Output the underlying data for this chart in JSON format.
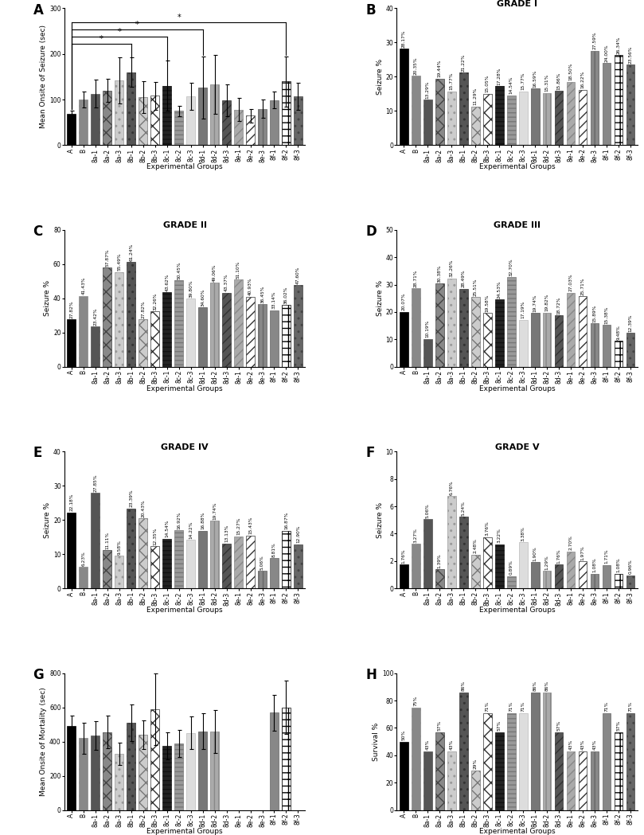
{
  "groups": [
    "A",
    "B",
    "8a-1",
    "8a-2",
    "8a-3",
    "8b-1",
    "8b-2",
    "8b-3",
    "8c-1",
    "8c-2",
    "8c-3",
    "8d-1",
    "8d-2",
    "8d-3",
    "8e-1",
    "8e-2",
    "8e-3",
    "8f-1",
    "8f-2",
    "8f-3"
  ],
  "bar_styles": [
    {
      "color": "#000000",
      "hatch": null,
      "edgecolor": "#000000"
    },
    {
      "color": "#888888",
      "hatch": "..",
      "edgecolor": "#888888"
    },
    {
      "color": "#555555",
      "hatch": "..",
      "edgecolor": "#555555"
    },
    {
      "color": "#888888",
      "hatch": "xx",
      "edgecolor": "#444444"
    },
    {
      "color": "#cccccc",
      "hatch": "..",
      "edgecolor": "#999999"
    },
    {
      "color": "#555555",
      "hatch": "..",
      "edgecolor": "#333333"
    },
    {
      "color": "#cccccc",
      "hatch": "xx",
      "edgecolor": "#777777"
    },
    {
      "color": "#ffffff",
      "hatch": "xx",
      "edgecolor": "#333333"
    },
    {
      "color": "#222222",
      "hatch": "---",
      "edgecolor": "#111111"
    },
    {
      "color": "#999999",
      "hatch": "---",
      "edgecolor": "#777777"
    },
    {
      "color": "#dddddd",
      "hatch": null,
      "edgecolor": "#bbbbbb"
    },
    {
      "color": "#777777",
      "hatch": null,
      "edgecolor": "#555555"
    },
    {
      "color": "#aaaaaa",
      "hatch": "|||",
      "edgecolor": "#888888"
    },
    {
      "color": "#555555",
      "hatch": "///",
      "edgecolor": "#333333"
    },
    {
      "color": "#aaaaaa",
      "hatch": "///",
      "edgecolor": "#888888"
    },
    {
      "color": "#ffffff",
      "hatch": "///",
      "edgecolor": "#333333"
    },
    {
      "color": "#888888",
      "hatch": "|||",
      "edgecolor": "#666666"
    },
    {
      "color": "#888888",
      "hatch": null,
      "edgecolor": "#666666"
    },
    {
      "color": "#ffffff",
      "hatch": "++",
      "edgecolor": "#000000"
    },
    {
      "color": "#666666",
      "hatch": "..",
      "edgecolor": "#444444"
    }
  ],
  "panelA": {
    "ylabel": "Mean Onsite of Seizure (sec)",
    "xlabel": "Experimental Groups",
    "ylim": [
      0,
      300
    ],
    "yticks": [
      0,
      100,
      200,
      300
    ],
    "values": [
      68,
      100,
      113,
      120,
      142,
      160,
      105,
      108,
      130,
      75,
      107,
      127,
      133,
      98,
      78,
      65,
      80,
      99,
      140,
      107
    ],
    "errors": [
      8,
      18,
      30,
      25,
      50,
      32,
      35,
      30,
      55,
      12,
      30,
      68,
      65,
      35,
      25,
      15,
      20,
      18,
      55,
      30
    ],
    "sig_brackets": [
      [
        0,
        5,
        222,
        "*"
      ],
      [
        0,
        8,
        238,
        "*"
      ],
      [
        0,
        11,
        254,
        "*"
      ],
      [
        0,
        18,
        270,
        "*"
      ]
    ]
  },
  "panelB": {
    "title": "GRADE I",
    "ylabel": "Seizure %",
    "xlabel": "Experimental Groups",
    "ylim": [
      0,
      40
    ],
    "yticks": [
      0,
      10,
      20,
      30,
      40
    ],
    "values": [
      28.17,
      20.35,
      13.29,
      19.44,
      15.77,
      21.22,
      11.29,
      15.05,
      17.28,
      14.54,
      15.77,
      16.59,
      15.31,
      15.86,
      18.5,
      16.22,
      27.59,
      24.0,
      26.34,
      23.56
    ]
  },
  "panelC": {
    "title": "GRADE II",
    "ylabel": "Seizure %",
    "xlabel": "Experimental Groups",
    "ylim": [
      0,
      80
    ],
    "yticks": [
      0,
      20,
      40,
      60,
      80
    ],
    "values": [
      27.82,
      41.43,
      23.42,
      57.87,
      55.49,
      61.24,
      27.82,
      32.26,
      43.62,
      50.45,
      39.8,
      34.6,
      49.06,
      43.37,
      51.1,
      40.93,
      36.45,
      33.14,
      36.02,
      47.6
    ]
  },
  "panelD": {
    "title": "GRADE III",
    "ylabel": "Seizure %",
    "xlabel": "Experimental Groups",
    "ylim": [
      0,
      50
    ],
    "yticks": [
      0,
      10,
      20,
      30,
      40,
      50
    ],
    "values": [
      20.07,
      28.71,
      10.19,
      30.38,
      32.26,
      28.49,
      25.51,
      19.58,
      24.53,
      32.7,
      17.19,
      19.74,
      19.82,
      18.72,
      27.03,
      25.71,
      15.89,
      15.38,
      9.48,
      12.39
    ]
  },
  "panelE": {
    "title": "GRADE IV",
    "ylabel": "Seizure %",
    "xlabel": "Experimental Groups",
    "ylim": [
      0,
      40
    ],
    "yticks": [
      0,
      10,
      20,
      30,
      40
    ],
    "values": [
      22.18,
      6.23,
      27.85,
      11.11,
      9.58,
      23.39,
      20.43,
      12.35,
      14.54,
      16.92,
      14.22,
      16.88,
      19.74,
      13.13,
      15.27,
      15.43,
      5.06,
      8.81,
      16.87,
      12.9
    ]
  },
  "panelF": {
    "title": "GRADE V",
    "ylabel": "Seizure %",
    "xlabel": "Experimental Groups",
    "ylim": [
      0,
      10
    ],
    "yticks": [
      0,
      2,
      4,
      6,
      8,
      10
    ],
    "values": [
      1.76,
      3.27,
      5.06,
      1.39,
      6.76,
      5.24,
      2.48,
      3.76,
      3.22,
      0.89,
      3.38,
      1.9,
      1.29,
      1.76,
      2.7,
      1.97,
      1.08,
      1.71,
      1.08,
      0.96
    ]
  },
  "panelG": {
    "ylabel": "Mean Onsite of Mortality (sec)",
    "xlabel": "Experimental Groups",
    "ylim": [
      0,
      800
    ],
    "yticks": [
      0,
      200,
      400,
      600,
      800
    ],
    "values": [
      490,
      420,
      435,
      455,
      330,
      510,
      440,
      590,
      375,
      390,
      450,
      460,
      460,
      0,
      0,
      0,
      0,
      570,
      600,
      0
    ],
    "errors": [
      60,
      90,
      85,
      95,
      65,
      105,
      85,
      210,
      80,
      80,
      95,
      105,
      125,
      0,
      0,
      0,
      0,
      105,
      155,
      0
    ]
  },
  "panelH": {
    "ylabel": "Survival %",
    "xlabel": "Experimental Groups",
    "ylim": [
      0,
      100
    ],
    "yticks": [
      0,
      20,
      40,
      60,
      80,
      100
    ],
    "values": [
      50,
      75,
      43,
      57,
      43,
      86,
      29,
      71,
      57,
      71,
      71,
      86,
      86,
      57,
      43,
      43,
      43,
      71,
      57,
      71
    ]
  }
}
